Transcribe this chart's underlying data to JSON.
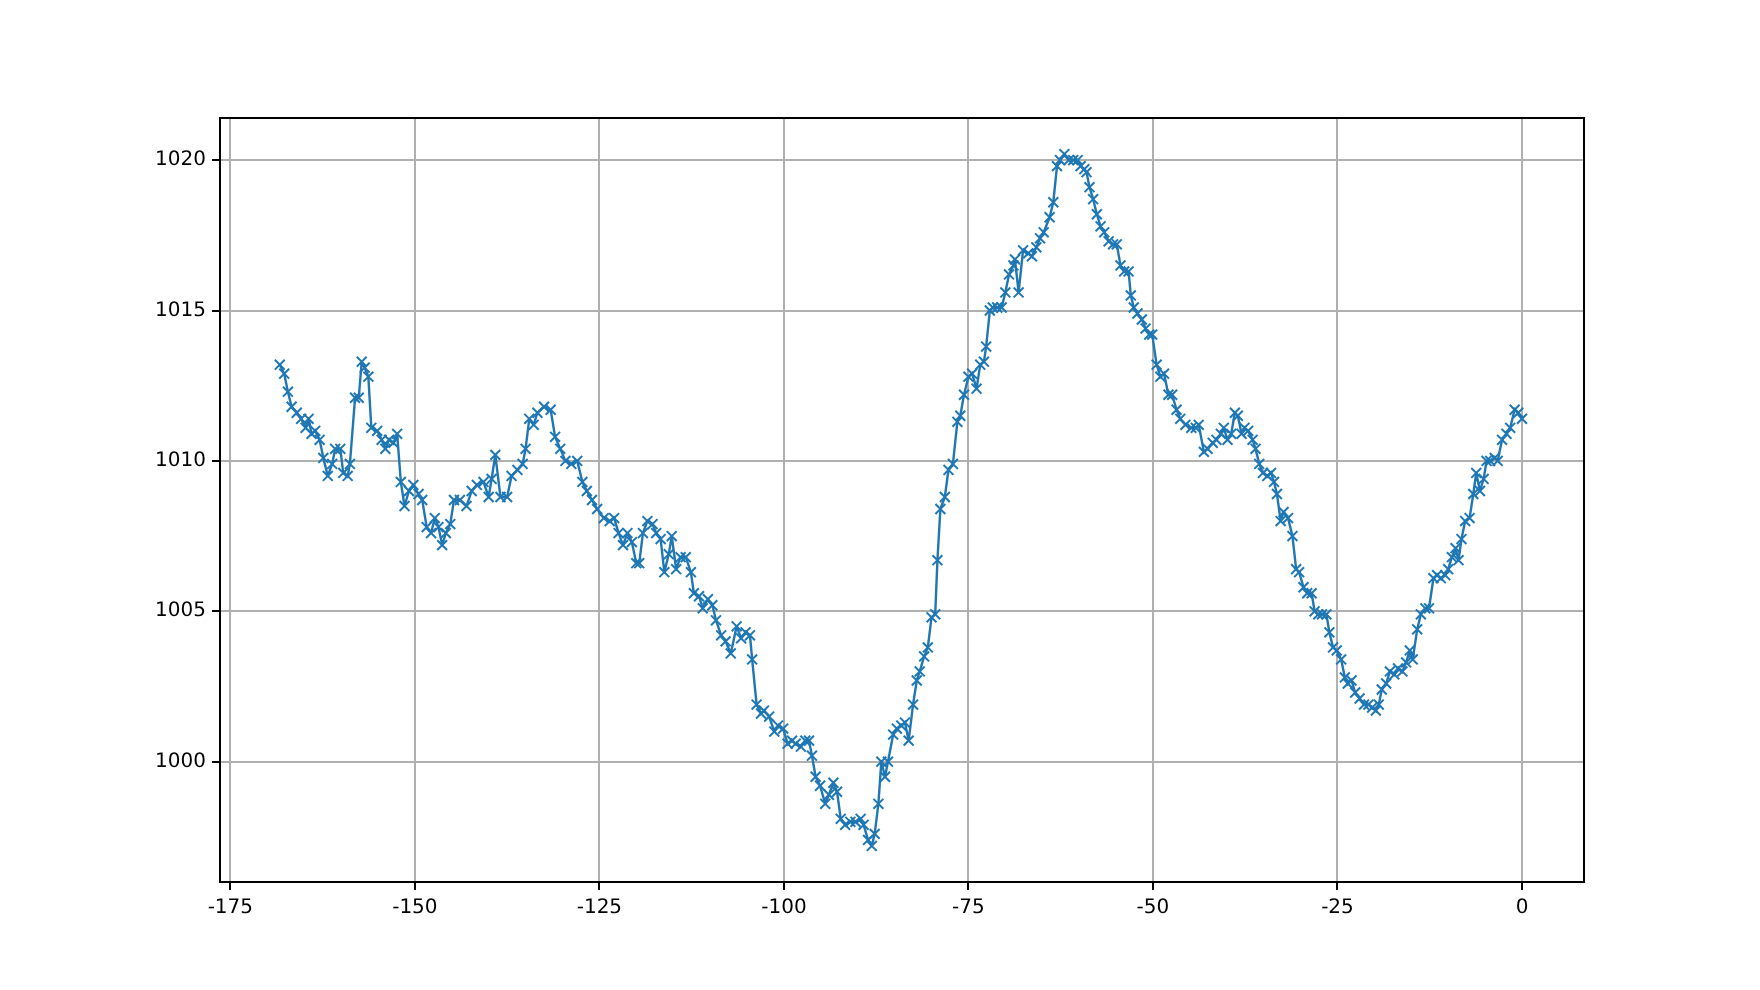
{
  "chart_data": {
    "type": "line",
    "marker": "cross",
    "line_style": "solid",
    "grid": true,
    "xlim": [
      -176.4,
      8.4
    ],
    "ylim": [
      996,
      1021.4
    ],
    "xticks": [
      -175,
      -150,
      -125,
      -100,
      -75,
      -50,
      -25,
      0
    ],
    "yticks": [
      1000,
      1005,
      1010,
      1015,
      1020
    ],
    "x": [
      -168.3,
      -167.7,
      -167.2,
      -166.7,
      -166,
      -165.4,
      -164.8,
      -164.4,
      -164,
      -163.5,
      -162.9,
      -162.4,
      -161.8,
      -161.2,
      -160.8,
      -160.1,
      -159.7,
      -159.1,
      -158.8,
      -158.1,
      -157.6,
      -157.2,
      -156.8,
      -156.3,
      -155.9,
      -155.1,
      -154.5,
      -154,
      -153.5,
      -152.9,
      -152.4,
      -151.9,
      -151.4,
      -150.8,
      -150.2,
      -149.5,
      -149,
      -148.4,
      -147.8,
      -147.3,
      -146.8,
      -146.3,
      -145.8,
      -145.2,
      -144.7,
      -143.9,
      -143,
      -142.3,
      -141.6,
      -140.7,
      -140,
      -139.6,
      -139.1,
      -138.4,
      -137.5,
      -136.9,
      -136.1,
      -135.4,
      -135,
      -134.5,
      -133.9,
      -133.4,
      -132.5,
      -131.6,
      -131,
      -130.3,
      -129.6,
      -128.8,
      -128,
      -127.3,
      -126.7,
      -126,
      -125.3,
      -124.4,
      -123.6,
      -123,
      -122.4,
      -121.8,
      -121.2,
      -120.6,
      -120,
      -119.6,
      -119.1,
      -118.5,
      -117.8,
      -117.3,
      -116.7,
      -116.2,
      -115.6,
      -115.2,
      -114.6,
      -114,
      -113.3,
      -112.6,
      -112.2,
      -111.5,
      -111,
      -110.3,
      -109.7,
      -109.2,
      -108.5,
      -107.9,
      -107.2,
      -106.4,
      -105.8,
      -105.2,
      -104.6,
      -104.3,
      -103.7,
      -103.1,
      -102.7,
      -102,
      -101.3,
      -100.8,
      -100.1,
      -99.5,
      -98.9,
      -98.4,
      -97.7,
      -97.1,
      -96.6,
      -96.2,
      -95.7,
      -95.1,
      -94.4,
      -93.9,
      -93.3,
      -92.8,
      -92.3,
      -91.7,
      -91,
      -90.3,
      -89.6,
      -89.2,
      -88.6,
      -88.1,
      -87.7,
      -87.2,
      -86.8,
      -86.3,
      -85.9,
      -85.2,
      -84.7,
      -84.1,
      -83.6,
      -83.1,
      -82.5,
      -82,
      -81.6,
      -81,
      -80.5,
      -80,
      -79.5,
      -79.2,
      -78.8,
      -78.2,
      -77.7,
      -77.1,
      -76.5,
      -76.1,
      -75.6,
      -75,
      -74.5,
      -73.9,
      -73.4,
      -72.9,
      -72.6,
      -72.1,
      -71.7,
      -71.1,
      -70.5,
      -70,
      -69.5,
      -68.9,
      -68.7,
      -68.2,
      -67.6,
      -66.9,
      -66.4,
      -65.8,
      -65.3,
      -64.8,
      -64,
      -63.5,
      -63,
      -62.6,
      -62,
      -61.4,
      -60.8,
      -60.2,
      -59.8,
      -59.3,
      -59,
      -58.6,
      -58.1,
      -57.6,
      -57.1,
      -56.6,
      -56,
      -55.4,
      -54.9,
      -54.4,
      -53.9,
      -53.3,
      -53,
      -52.6,
      -52.1,
      -51.5,
      -51,
      -50.5,
      -50.1,
      -49.5,
      -49,
      -48.5,
      -47.9,
      -47.4,
      -46.8,
      -46.3,
      -45.6,
      -44.8,
      -44.2,
      -43.8,
      -43.1,
      -42.6,
      -41.9,
      -41.4,
      -40.8,
      -40.4,
      -39.9,
      -39.4,
      -38.9,
      -38.5,
      -38,
      -37.6,
      -37.1,
      -36.5,
      -36.1,
      -35.6,
      -35.1,
      -34.5,
      -34,
      -33.6,
      -33.2,
      -32.7,
      -32.3,
      -31.7,
      -31.1,
      -30.6,
      -30.2,
      -29.6,
      -29.1,
      -28.5,
      -28.1,
      -27.6,
      -27.1,
      -26.5,
      -26.1,
      -25.6,
      -25.1,
      -24.5,
      -24,
      -23.6,
      -23.1,
      -22.6,
      -22,
      -21.4,
      -20.8,
      -20.3,
      -19.8,
      -19.4,
      -19,
      -18.4,
      -17.9,
      -17.3,
      -16.8,
      -16.2,
      -15.7,
      -15.2,
      -14.8,
      -14.2,
      -13.7,
      -13.1,
      -12.6,
      -12,
      -11.5,
      -11,
      -10.4,
      -10,
      -9.5,
      -9,
      -8.6,
      -8.2,
      -7.7,
      -7.1,
      -6.6,
      -6.2,
      -5.7,
      -5.2,
      -4.8,
      -4.3,
      -3.7,
      -3.3,
      -2.7,
      -2.1,
      -1.6,
      -1,
      -0.5,
      0
    ],
    "series": [
      {
        "color": "#1f77b4",
        "values": [
          1013.2,
          1012.9,
          1012.3,
          1011.8,
          1011.6,
          1011.4,
          1011.1,
          1011.4,
          1010.9,
          1011,
          1010.7,
          1010.1,
          1009.5,
          1009.9,
          1010.4,
          1010.4,
          1009.6,
          1009.5,
          1009.9,
          1012.1,
          1012.1,
          1013.3,
          1013.1,
          1012.8,
          1011.1,
          1011,
          1010.7,
          1010.4,
          1010.7,
          1010.6,
          1010.9,
          1009.3,
          1008.5,
          1009,
          1009.2,
          1008.9,
          1008.7,
          1007.8,
          1007.6,
          1008.1,
          1007.8,
          1007.2,
          1007.6,
          1007.9,
          1008.7,
          1008.7,
          1008.5,
          1009,
          1009.2,
          1009.3,
          1008.8,
          1009.4,
          1010.2,
          1008.8,
          1008.8,
          1009.5,
          1009.7,
          1009.9,
          1010.4,
          1011.4,
          1011.2,
          1011.6,
          1011.8,
          1011.7,
          1010.8,
          1010.4,
          1010,
          1009.9,
          1010,
          1009.3,
          1009,
          1008.7,
          1008.4,
          1008.1,
          1008,
          1008.1,
          1007.6,
          1007.2,
          1007.6,
          1007.3,
          1006.6,
          1006.6,
          1007.6,
          1008,
          1007.9,
          1007.6,
          1007.4,
          1006.3,
          1006.9,
          1007.5,
          1006.4,
          1006.8,
          1006.8,
          1006.3,
          1005.6,
          1005.5,
          1005.1,
          1005.4,
          1005.2,
          1004.7,
          1004.2,
          1004,
          1003.6,
          1004.5,
          1004.1,
          1004.3,
          1004.2,
          1003.4,
          1001.9,
          1001.6,
          1001.7,
          1001.5,
          1001,
          1001.2,
          1001.1,
          1000.6,
          1000.7,
          1000.6,
          1000.5,
          1000.7,
          1000.7,
          1000.2,
          999.5,
          999.2,
          998.6,
          998.9,
          999.3,
          999,
          998.1,
          997.9,
          998,
          998,
          998.1,
          997.9,
          997.4,
          997.2,
          997.6,
          998.6,
          1000,
          999.5,
          1000,
          1000.9,
          1001.1,
          1001.2,
          1001.3,
          1000.7,
          1001.9,
          1002.7,
          1003,
          1003.5,
          1003.8,
          1004.8,
          1004.9,
          1006.7,
          1008.4,
          1008.8,
          1009.7,
          1009.9,
          1011.3,
          1011.5,
          1012.2,
          1012.8,
          1012.9,
          1012.4,
          1013.2,
          1013.3,
          1013.8,
          1015,
          1015.1,
          1015.1,
          1015.1,
          1015.6,
          1016.2,
          1016.5,
          1016.7,
          1015.6,
          1017,
          1016.9,
          1016.8,
          1017.1,
          1017.4,
          1017.6,
          1018.1,
          1018.6,
          1019.8,
          1020,
          1020.2,
          1020,
          1020,
          1020,
          1019.8,
          1019.7,
          1019.6,
          1019.1,
          1018.7,
          1018.2,
          1017.8,
          1017.6,
          1017.3,
          1017.2,
          1017.2,
          1016.5,
          1016.3,
          1016.3,
          1015.5,
          1015.1,
          1014.9,
          1014.7,
          1014.4,
          1014.2,
          1014.2,
          1013.2,
          1012.8,
          1012.9,
          1012.2,
          1012.2,
          1011.7,
          1011.4,
          1011.2,
          1011.1,
          1011.1,
          1011.2,
          1010.3,
          1010.4,
          1010.6,
          1010.7,
          1010.9,
          1011.1,
          1010.7,
          1010.9,
          1011.6,
          1011.5,
          1010.9,
          1011.1,
          1011,
          1010.7,
          1010.4,
          1009.9,
          1009.6,
          1009.5,
          1009.6,
          1009.3,
          1008.9,
          1008,
          1008.3,
          1008.1,
          1007.5,
          1006.4,
          1006.3,
          1005.8,
          1005.6,
          1005.6,
          1005,
          1004.9,
          1004.9,
          1004.9,
          1004.3,
          1003.8,
          1003.7,
          1003.4,
          1002.8,
          1002.6,
          1002.7,
          1002.3,
          1002.1,
          1001.9,
          1001.9,
          1001.8,
          1001.7,
          1001.9,
          1002.4,
          1002.6,
          1003,
          1002.9,
          1003.1,
          1003,
          1003.3,
          1003.7,
          1003.4,
          1004.4,
          1004.9,
          1005.1,
          1005.1,
          1006.1,
          1006.2,
          1006.1,
          1006.2,
          1006.4,
          1006.8,
          1007.1,
          1006.7,
          1007.4,
          1008,
          1008.1,
          1008.9,
          1009.6,
          1009,
          1009.4,
          1010,
          1010,
          1010.1,
          1010,
          1010.7,
          1010.9,
          1011.1,
          1011.7,
          1011.6,
          1011.4
        ]
      }
    ]
  }
}
